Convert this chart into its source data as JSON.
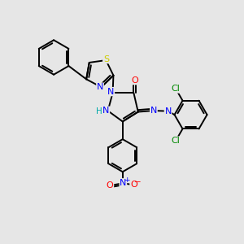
{
  "bg_color": "#e6e6e6",
  "bond_color": "#000000",
  "colors": {
    "N": "#0000ff",
    "O": "#ff0000",
    "S": "#cccc00",
    "Cl": "#008800",
    "H": "#00aaaa",
    "C": "#000000"
  },
  "lw": 1.4,
  "fs": 8.0
}
